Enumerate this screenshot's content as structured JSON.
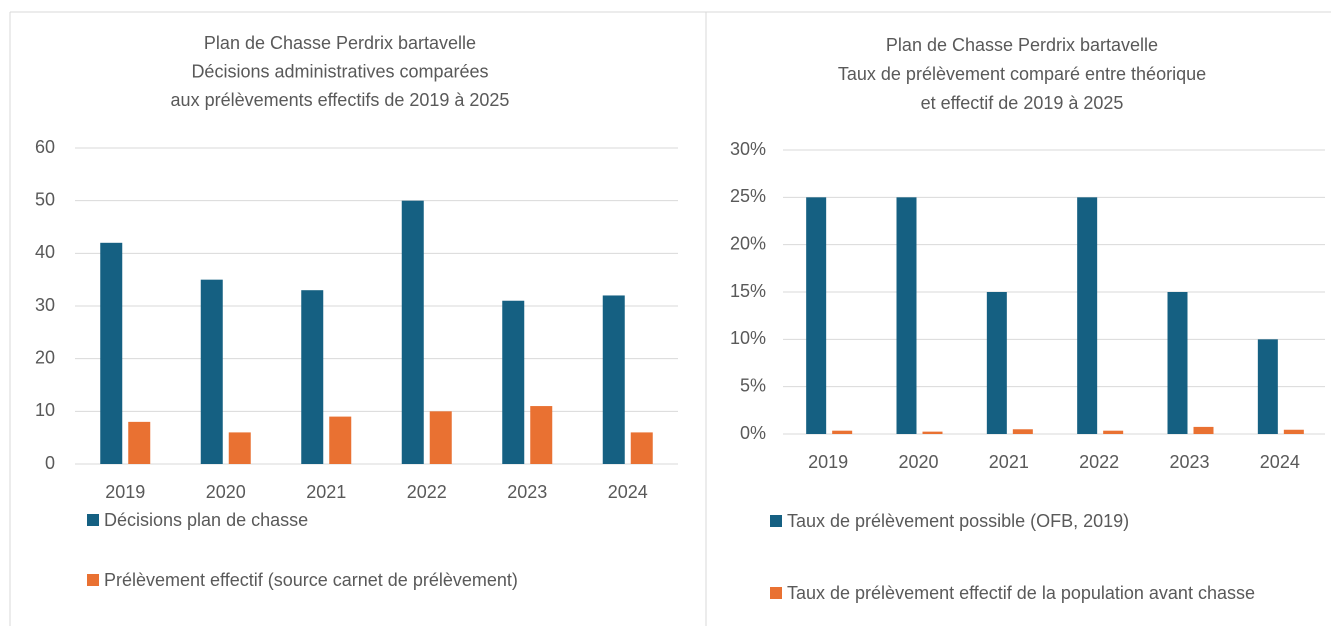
{
  "chart_data": [
    {
      "type": "bar",
      "title": [
        "Plan de Chasse Perdrix bartavelle",
        "Décisions administratives comparées",
        "aux prélèvements effectifs de 2019 à 2025"
      ],
      "categories": [
        "2019",
        "2020",
        "2021",
        "2022",
        "2023",
        "2024"
      ],
      "series": [
        {
          "name": "Décisions plan de chasse",
          "color": "#156082",
          "values": [
            42,
            35,
            33,
            50,
            31,
            32
          ]
        },
        {
          "name": "Prélèvement effectif (source carnet de prélèvement)",
          "color": "#e97132",
          "values": [
            8,
            6,
            9,
            10,
            11,
            6
          ]
        }
      ],
      "ylim": [
        0,
        60
      ],
      "yticks": [
        0,
        10,
        20,
        30,
        40,
        50,
        60
      ],
      "grid": true
    },
    {
      "type": "bar",
      "title": [
        "Plan de Chasse Perdrix bartavelle",
        "Taux de prélèvement comparé entre théorique",
        "et effectif de 2019 à 2025"
      ],
      "categories": [
        "2019",
        "2020",
        "2021",
        "2022",
        "2023",
        "2024"
      ],
      "series": [
        {
          "name": "Taux de prélèvement possible (OFB, 2019)",
          "color": "#156082",
          "values": [
            25,
            25,
            15,
            25,
            15,
            10
          ]
        },
        {
          "name": "Taux de prélèvement effectif de la population avant chasse",
          "color": "#e97132",
          "values": [
            0.35,
            0.25,
            0.5,
            0.35,
            0.75,
            0.45
          ]
        }
      ],
      "ylim": [
        0,
        30
      ],
      "yticks": [
        {
          "value": 0,
          "label": "0%"
        },
        {
          "value": 5,
          "label": "5%"
        },
        {
          "value": 10,
          "label": "10%"
        },
        {
          "value": 15,
          "label": "15%"
        },
        {
          "value": 20,
          "label": "20%"
        },
        {
          "value": 25,
          "label": "25%"
        },
        {
          "value": 30,
          "label": "30%"
        }
      ],
      "grid": true
    }
  ]
}
